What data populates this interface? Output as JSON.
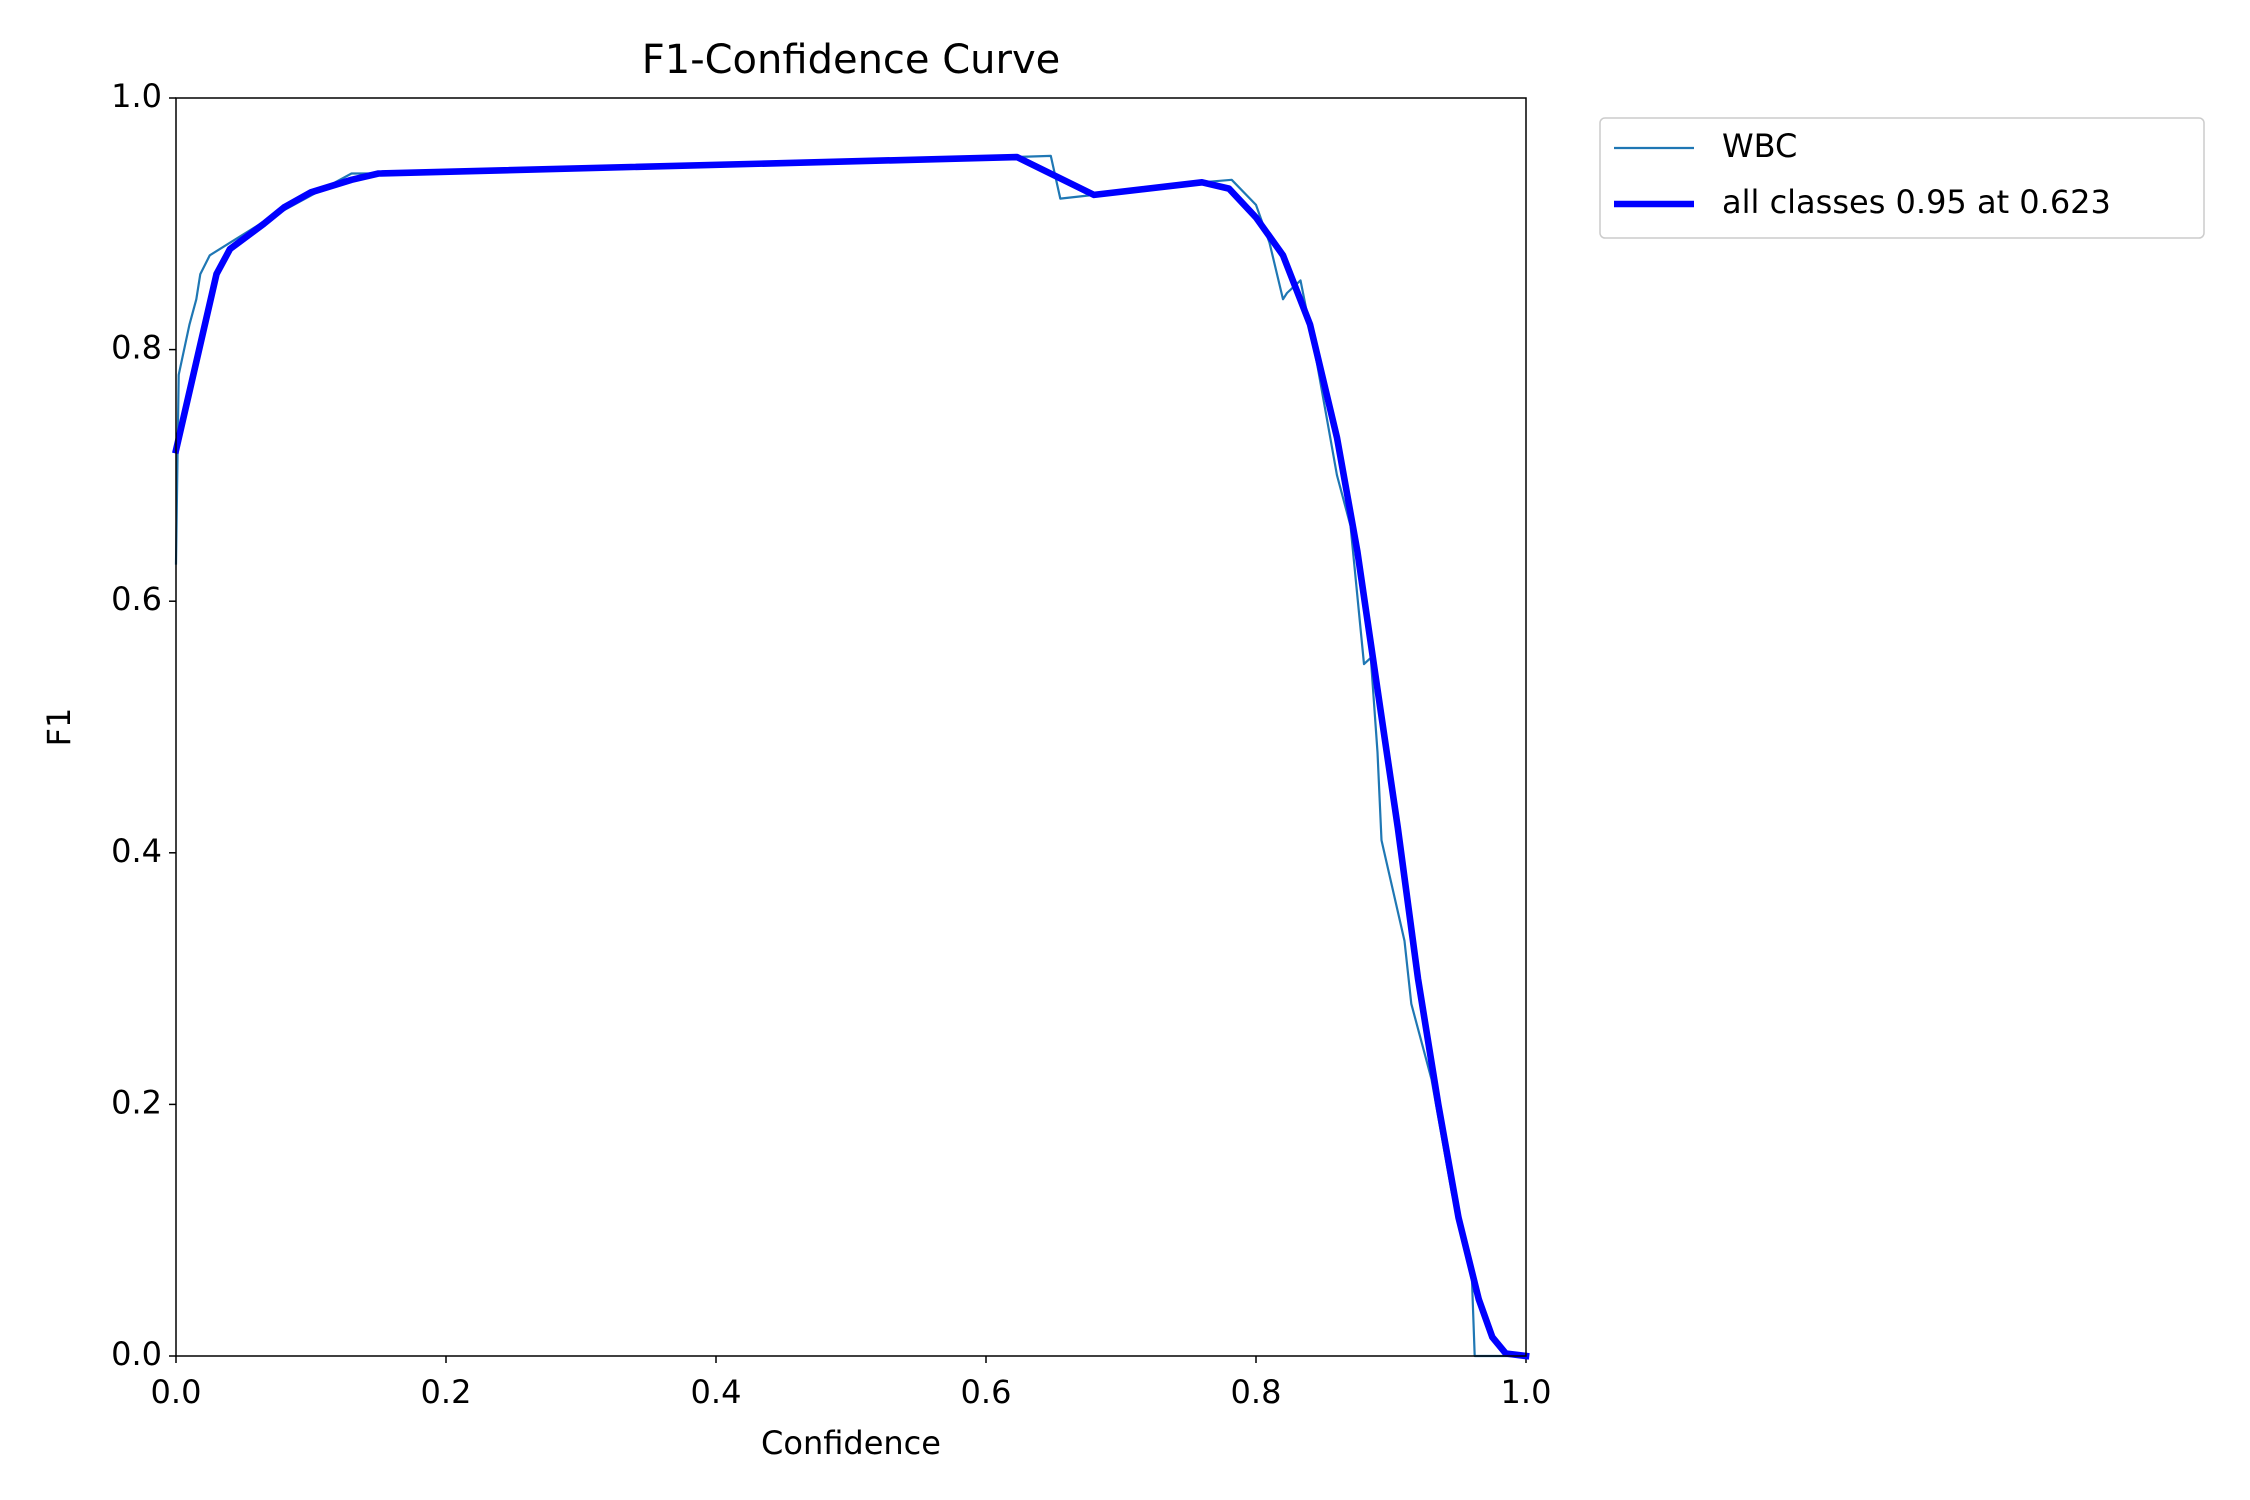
{
  "chart_data": {
    "type": "line",
    "title": "F1-Confidence Curve",
    "xlabel": "Confidence",
    "ylabel": "F1",
    "xlim": [
      0,
      1
    ],
    "ylim": [
      0,
      1
    ],
    "xticks": [
      {
        "value": 0,
        "label": "0.0"
      },
      0.2,
      0.4,
      0.6,
      0.8,
      {
        "value": 1,
        "label": "1.0"
      }
    ],
    "yticks": [
      {
        "value": 0,
        "label": "0.0"
      },
      0.2,
      0.4,
      0.6,
      0.8,
      {
        "value": 1,
        "label": "1.0"
      }
    ],
    "legend": "outside upper right",
    "series": [
      {
        "name": "WBC",
        "color": "#1f77b4",
        "linewidth": 1,
        "x": [
          0,
          0.002,
          0.01,
          0.015,
          0.018,
          0.025,
          0.04,
          0.07,
          0.13,
          0.15,
          0.62,
          0.648,
          0.655,
          0.68,
          0.76,
          0.782,
          0.8,
          0.81,
          0.82,
          0.823,
          0.833,
          0.845,
          0.86,
          0.87,
          0.88,
          0.885,
          0.89,
          0.893,
          0.91,
          0.915,
          0.93,
          0.945,
          0.96,
          0.962,
          1.0
        ],
        "values": [
          0.63,
          0.78,
          0.82,
          0.84,
          0.86,
          0.875,
          0.885,
          0.905,
          0.94,
          0.94,
          0.953,
          0.954,
          0.92,
          0.923,
          0.933,
          0.935,
          0.915,
          0.885,
          0.84,
          0.845,
          0.855,
          0.79,
          0.7,
          0.66,
          0.55,
          0.555,
          0.48,
          0.41,
          0.33,
          0.28,
          0.22,
          0.13,
          0.06,
          0.0,
          0.0
        ]
      },
      {
        "name": "all classes 0.95 at 0.623",
        "color": "#0000ff",
        "linewidth": 3,
        "x": [
          0,
          0.03,
          0.04,
          0.065,
          0.08,
          0.1,
          0.13,
          0.15,
          0.623,
          0.68,
          0.76,
          0.78,
          0.8,
          0.82,
          0.84,
          0.86,
          0.875,
          0.89,
          0.905,
          0.92,
          0.935,
          0.95,
          0.965,
          0.975,
          0.985,
          1.0
        ],
        "values": [
          0.72,
          0.86,
          0.88,
          0.9,
          0.913,
          0.925,
          0.935,
          0.94,
          0.953,
          0.923,
          0.933,
          0.928,
          0.905,
          0.875,
          0.82,
          0.73,
          0.64,
          0.53,
          0.42,
          0.3,
          0.2,
          0.11,
          0.045,
          0.015,
          0.002,
          0.0
        ]
      }
    ]
  }
}
